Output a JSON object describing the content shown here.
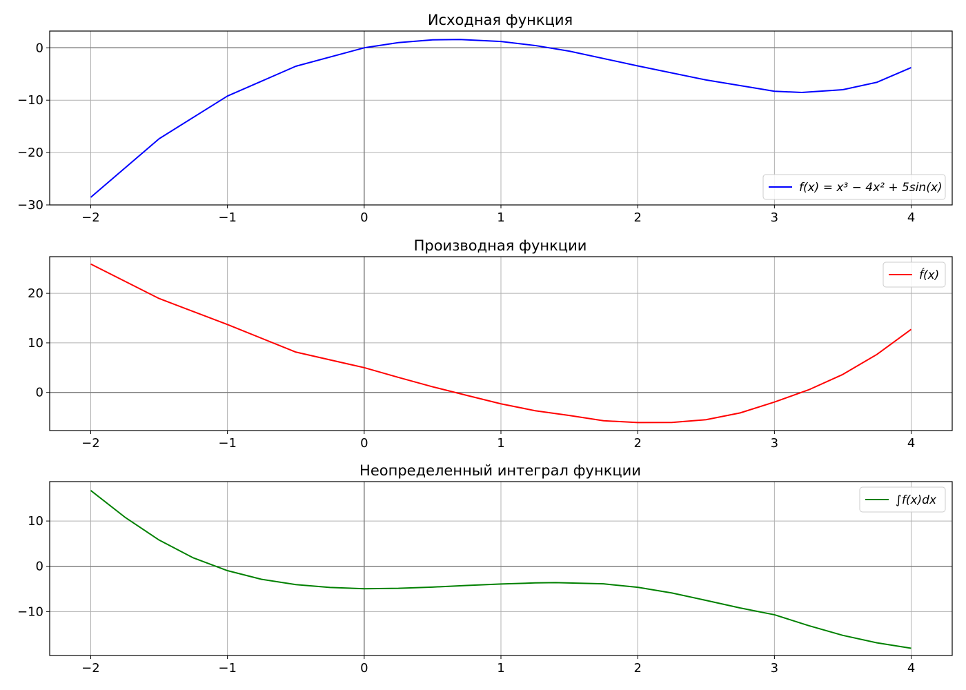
{
  "figure_title": "",
  "chart_data": [
    {
      "type": "line",
      "title": "Исходная функция",
      "xlabel": "",
      "ylabel": "",
      "xlim": [
        -2.3,
        4.3
      ],
      "ylim": [
        -30,
        3.2
      ],
      "xticks": [
        -2,
        -1,
        0,
        1,
        2,
        3,
        4
      ],
      "xtick_labels": [
        "−2",
        "−1",
        "0",
        "1",
        "2",
        "3",
        "4"
      ],
      "yticks": [
        0,
        -10,
        -20,
        -30
      ],
      "ytick_labels": [
        "0",
        "−10",
        "−20",
        "−30"
      ],
      "grid": true,
      "legend_position": "lower-right",
      "series": [
        {
          "name": "f(x) = x³ − 4x² + 5sin(x)",
          "color": "#0000ff",
          "x": [
            -2.0,
            -1.5,
            -1.0,
            -0.5,
            0.0,
            0.25,
            0.5,
            0.7,
            1.0,
            1.25,
            1.5,
            2.0,
            2.5,
            3.0,
            3.2,
            3.5,
            3.75,
            4.0
          ],
          "y": [
            -28.55,
            -17.37,
            -9.21,
            -3.52,
            0.0,
            0.99,
            1.52,
            1.58,
            1.21,
            0.44,
            -0.64,
            -3.45,
            -6.14,
            -8.29,
            -8.53,
            -8.0,
            -6.58,
            -3.78
          ]
        }
      ]
    },
    {
      "type": "line",
      "title": "Производная функции",
      "xlabel": "",
      "ylabel": "",
      "xlim": [
        -2.3,
        4.3
      ],
      "ylim": [
        -7.7,
        27.4
      ],
      "xticks": [
        -2,
        -1,
        0,
        1,
        2,
        3,
        4
      ],
      "xtick_labels": [
        "−2",
        "−1",
        "0",
        "1",
        "2",
        "3",
        "4"
      ],
      "yticks": [
        0,
        10,
        20
      ],
      "ytick_labels": [
        "0",
        "10",
        "20"
      ],
      "grid": true,
      "legend_position": "upper-right",
      "series": [
        {
          "name": "f́(x)",
          "color": "#ff0000",
          "x": [
            -2.0,
            -1.5,
            -1.0,
            -0.5,
            0.0,
            0.25,
            0.5,
            0.75,
            1.0,
            1.25,
            1.5,
            1.75,
            2.0,
            2.25,
            2.5,
            2.75,
            3.0,
            3.25,
            3.5,
            3.75,
            4.0
          ],
          "y": [
            25.92,
            18.96,
            13.7,
            8.14,
            5.0,
            3.03,
            1.14,
            -0.6,
            -2.3,
            -3.69,
            -4.65,
            -5.72,
            -6.08,
            -6.06,
            -5.51,
            -4.13,
            -1.95,
            0.52,
            3.63,
            7.68,
            12.73
          ]
        }
      ]
    },
    {
      "type": "line",
      "title": "Неопределенный интеграл функции",
      "xlabel": "",
      "ylabel": "",
      "xlim": [
        -2.3,
        4.3
      ],
      "ylim": [
        -19.7,
        18.7
      ],
      "xticks": [
        -2,
        -1,
        0,
        1,
        2,
        3,
        4
      ],
      "xtick_labels": [
        "−2",
        "−1",
        "0",
        "1",
        "2",
        "3",
        "4"
      ],
      "yticks": [
        10,
        0,
        -10
      ],
      "ytick_labels": [
        "10",
        "0",
        "−10"
      ],
      "grid": true,
      "legend_position": "upper-right",
      "series": [
        {
          "name": "∫f(x)dx",
          "color": "#008000",
          "x": [
            -2.0,
            -1.75,
            -1.5,
            -1.25,
            -1.0,
            -0.75,
            -0.5,
            -0.25,
            0.0,
            0.25,
            0.5,
            0.75,
            1.0,
            1.25,
            1.4,
            1.75,
            2.0,
            2.25,
            2.5,
            2.75,
            3.0,
            3.25,
            3.5,
            3.75,
            4.0
          ],
          "y": [
            16.75,
            10.85,
            5.8,
            1.87,
            -0.96,
            -2.88,
            -4.04,
            -4.67,
            -4.95,
            -4.86,
            -4.59,
            -4.23,
            -3.91,
            -3.67,
            -3.6,
            -3.88,
            -4.64,
            -5.89,
            -7.53,
            -9.21,
            -10.7,
            -13.1,
            -15.25,
            -16.9,
            -18.1
          ]
        }
      ]
    }
  ]
}
